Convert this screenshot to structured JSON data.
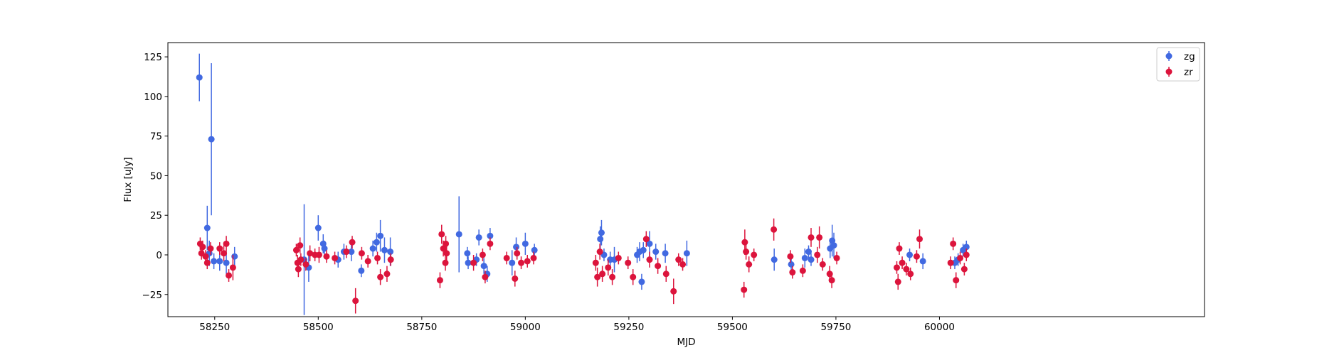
{
  "chart_data": {
    "type": "scatter",
    "title": "",
    "xlabel": "MJD",
    "ylabel": "Flux [uJy]",
    "xlim": [
      58137,
      60640
    ],
    "ylim": [
      -39,
      134
    ],
    "xticks": [
      58250,
      58500,
      58750,
      59000,
      59250,
      59500,
      59750,
      60000
    ],
    "yticks": [
      -25,
      0,
      25,
      50,
      75,
      100,
      125
    ],
    "grid": false,
    "legend_position": "top-right",
    "error_bars": true,
    "series": [
      {
        "name": "zg",
        "color": "#4169e1",
        "points": [
          [
            58213,
            112,
            15
          ],
          [
            58232,
            17,
            14
          ],
          [
            58237,
            1,
            8
          ],
          [
            58242,
            73,
            48
          ],
          [
            58248,
            -4,
            5
          ],
          [
            58262,
            -4,
            6
          ],
          [
            58278,
            -5,
            7
          ],
          [
            58298,
            -1,
            6
          ],
          [
            58466,
            -3,
            35
          ],
          [
            58477,
            -8,
            9
          ],
          [
            58500,
            17,
            8
          ],
          [
            58512,
            7,
            6
          ],
          [
            58515,
            4,
            5
          ],
          [
            58548,
            -3,
            5
          ],
          [
            58562,
            2,
            5
          ],
          [
            58580,
            2,
            6
          ],
          [
            58604,
            -10,
            4
          ],
          [
            58632,
            4,
            5
          ],
          [
            58641,
            8,
            6
          ],
          [
            58650,
            12,
            10
          ],
          [
            58660,
            3,
            8
          ],
          [
            58674,
            2,
            9
          ],
          [
            58840,
            13,
            24
          ],
          [
            58860,
            1,
            4
          ],
          [
            58862,
            -5,
            4
          ],
          [
            58882,
            -3,
            4
          ],
          [
            58888,
            11,
            5
          ],
          [
            58900,
            -7,
            5
          ],
          [
            58908,
            -12,
            5
          ],
          [
            58915,
            12,
            5
          ],
          [
            58968,
            -5,
            8
          ],
          [
            58978,
            5,
            6
          ],
          [
            59000,
            7,
            7
          ],
          [
            59022,
            3,
            4
          ],
          [
            59181,
            10,
            8
          ],
          [
            59184,
            14,
            8
          ],
          [
            59190,
            0,
            4
          ],
          [
            59205,
            -3,
            5
          ],
          [
            59215,
            -3,
            8
          ],
          [
            59270,
            0,
            5
          ],
          [
            59276,
            2,
            6
          ],
          [
            59281,
            -17,
            5
          ],
          [
            59285,
            3,
            5
          ],
          [
            59300,
            7,
            8
          ],
          [
            59315,
            2,
            5
          ],
          [
            59338,
            1,
            6
          ],
          [
            59390,
            1,
            8
          ],
          [
            59601,
            -3,
            7
          ],
          [
            59642,
            -6,
            4
          ],
          [
            59675,
            -2,
            6
          ],
          [
            59684,
            2,
            4
          ],
          [
            59690,
            -3,
            4
          ],
          [
            59736,
            4,
            6
          ],
          [
            59741,
            9,
            10
          ],
          [
            59745,
            6,
            8
          ],
          [
            59928,
            0,
            4
          ],
          [
            59960,
            -4,
            5
          ],
          [
            60037,
            -5,
            4
          ],
          [
            60045,
            -3,
            4
          ],
          [
            60057,
            3,
            4
          ],
          [
            60065,
            5,
            4
          ]
        ]
      },
      {
        "name": "zr",
        "color": "#dc143c",
        "points": [
          [
            58215,
            7,
            4
          ],
          [
            58218,
            1,
            4
          ],
          [
            58221,
            5,
            4
          ],
          [
            58228,
            -1,
            4
          ],
          [
            58232,
            -5,
            4
          ],
          [
            58240,
            4,
            4
          ],
          [
            58262,
            4,
            4
          ],
          [
            58272,
            1,
            5
          ],
          [
            58278,
            7,
            5
          ],
          [
            58284,
            -13,
            4
          ],
          [
            58294,
            -8,
            8
          ],
          [
            58447,
            3,
            4
          ],
          [
            58450,
            -5,
            5
          ],
          [
            58452,
            -9,
            5
          ],
          [
            58456,
            6,
            5
          ],
          [
            58458,
            -3,
            4
          ],
          [
            58470,
            -6,
            4
          ],
          [
            58480,
            1,
            5
          ],
          [
            58492,
            0,
            4
          ],
          [
            58502,
            0,
            5
          ],
          [
            58520,
            -1,
            4
          ],
          [
            58540,
            -2,
            4
          ],
          [
            58568,
            2,
            4
          ],
          [
            58582,
            8,
            4
          ],
          [
            58590,
            -29,
            8
          ],
          [
            58605,
            1,
            4
          ],
          [
            58620,
            -4,
            4
          ],
          [
            58643,
            -2,
            4
          ],
          [
            58650,
            -14,
            5
          ],
          [
            58666,
            -12,
            5
          ],
          [
            58675,
            -3,
            4
          ],
          [
            58794,
            -16,
            5
          ],
          [
            58798,
            13,
            6
          ],
          [
            58802,
            4,
            5
          ],
          [
            58807,
            -5,
            5
          ],
          [
            58810,
            1,
            5
          ],
          [
            58808,
            7,
            5
          ],
          [
            58875,
            -5,
            5
          ],
          [
            58897,
            0,
            4
          ],
          [
            58903,
            -14,
            4
          ],
          [
            58915,
            7,
            4
          ],
          [
            58955,
            -2,
            4
          ],
          [
            58975,
            -15,
            5
          ],
          [
            58980,
            1,
            4
          ],
          [
            58990,
            -5,
            4
          ],
          [
            59005,
            -4,
            4
          ],
          [
            59020,
            -2,
            4
          ],
          [
            59170,
            -5,
            5
          ],
          [
            59174,
            -14,
            6
          ],
          [
            59180,
            2,
            5
          ],
          [
            59186,
            -12,
            5
          ],
          [
            59200,
            -8,
            5
          ],
          [
            59210,
            -14,
            5
          ],
          [
            59225,
            -2,
            4
          ],
          [
            59248,
            -5,
            4
          ],
          [
            59260,
            -14,
            5
          ],
          [
            59292,
            10,
            5
          ],
          [
            59300,
            -3,
            5
          ],
          [
            59320,
            -7,
            5
          ],
          [
            59340,
            -12,
            5
          ],
          [
            59358,
            -23,
            8
          ],
          [
            59370,
            -3,
            4
          ],
          [
            59380,
            -6,
            4
          ],
          [
            59528,
            -22,
            5
          ],
          [
            59530,
            8,
            8
          ],
          [
            59533,
            2,
            5
          ],
          [
            59540,
            -6,
            5
          ],
          [
            59552,
            0,
            4
          ],
          [
            59600,
            16,
            7
          ],
          [
            59640,
            -1,
            4
          ],
          [
            59645,
            -11,
            4
          ],
          [
            59670,
            -10,
            4
          ],
          [
            59690,
            11,
            6
          ],
          [
            59705,
            0,
            5
          ],
          [
            59710,
            11,
            7
          ],
          [
            59718,
            -6,
            4
          ],
          [
            59735,
            -12,
            5
          ],
          [
            59740,
            -16,
            5
          ],
          [
            59752,
            -2,
            4
          ],
          [
            59897,
            -8,
            4
          ],
          [
            59900,
            -17,
            5
          ],
          [
            59903,
            4,
            4
          ],
          [
            59910,
            -5,
            4
          ],
          [
            59920,
            -9,
            4
          ],
          [
            59930,
            -12,
            4
          ],
          [
            59945,
            -1,
            4
          ],
          [
            59952,
            10,
            6
          ],
          [
            60027,
            -5,
            4
          ],
          [
            60033,
            7,
            4
          ],
          [
            60040,
            -16,
            5
          ],
          [
            60050,
            -2,
            4
          ],
          [
            60060,
            -9,
            4
          ],
          [
            60065,
            0,
            4
          ]
        ]
      }
    ]
  }
}
